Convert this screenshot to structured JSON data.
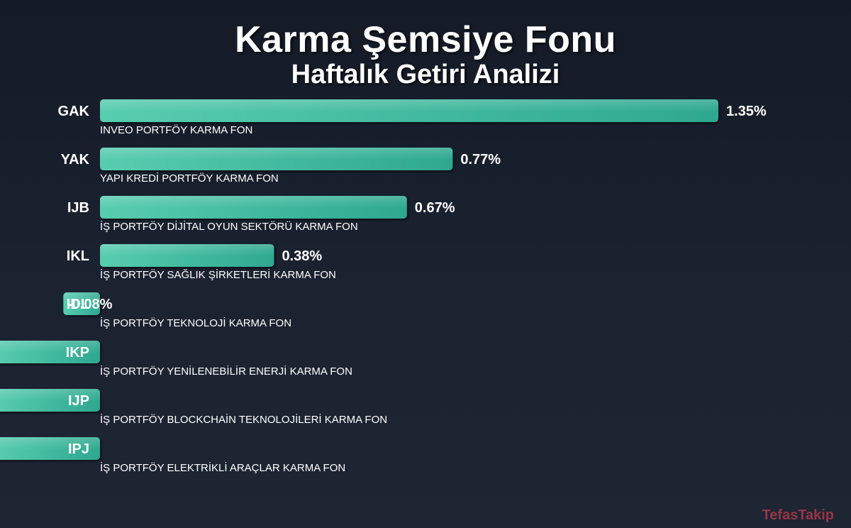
{
  "title": "Karma Şemsiye Fonu",
  "subtitle": "Haftalık Getiri Analizi",
  "watermark": "TefasTakip",
  "colors": {
    "bar": "#4fc7a7",
    "bar_dark": "#2ea88f",
    "background": "#171e2b",
    "fund_name": "#ffffff"
  },
  "chart_data": {
    "type": "bar",
    "orientation": "horizontal",
    "unit": "%",
    "categories": [
      "GAK",
      "YAK",
      "IJB",
      "IKL",
      "IDL",
      "IKP",
      "IJP",
      "IPJ"
    ],
    "fund_names": [
      "INVEO PORTFÖY KARMA FON",
      "YAPI KREDİ PORTFÖY KARMA FON",
      "İŞ PORTFÖY DİJİTAL OYUN SEKTÖRÜ KARMA FON",
      "İŞ PORTFÖY SAĞLIK ŞİRKETLERİ KARMA FON",
      "İŞ PORTFÖY TEKNOLOJİ KARMA FON",
      "İŞ PORTFÖY YENİLENEBİLİR ENERJİ KARMA FON",
      "İŞ PORTFÖY BLOCKCHAİN TEKNOLOJİLERİ KARMA FON",
      "İŞ PORTFÖY ELEKTRİKLİ ARAÇLAR KARMA FON"
    ],
    "values": [
      1.35,
      0.77,
      0.67,
      0.38,
      -0.08,
      -0.23,
      -0.23,
      -0.23
    ],
    "data_labels": [
      "1.35%",
      "0.77%",
      "0.67%",
      "0.38%",
      "-0.08%",
      "",
      "",
      ""
    ]
  }
}
